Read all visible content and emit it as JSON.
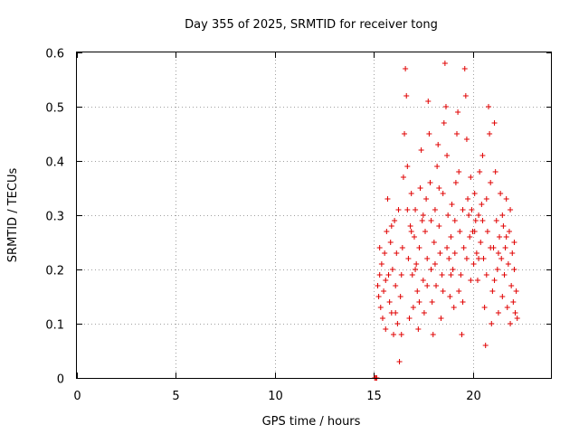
{
  "chart_data": {
    "type": "scatter",
    "title": "Day 355 of 2025, SRMTID for receiver tong",
    "xlabel": "GPS time / hours",
    "ylabel": "SRMTID / TECUs",
    "xlim": [
      0,
      24
    ],
    "ylim": [
      0,
      0.6
    ],
    "xticks": [
      "0",
      "5",
      "10",
      "15",
      "20"
    ],
    "yticks": [
      "0",
      "0.1",
      "0.2",
      "0.3",
      "0.4",
      "0.5",
      "0.6"
    ],
    "marker": "+",
    "color": "#e00000",
    "grid": true,
    "series": [
      {
        "name": "SRMTID",
        "points": [
          [
            15.05,
            0.0
          ],
          [
            15.1,
            0.0
          ],
          [
            15.15,
            0.0
          ],
          [
            15.2,
            0.17
          ],
          [
            15.25,
            0.15
          ],
          [
            15.3,
            0.19
          ],
          [
            15.35,
            0.13
          ],
          [
            15.4,
            0.21
          ],
          [
            15.45,
            0.11
          ],
          [
            15.5,
            0.16
          ],
          [
            15.55,
            0.23
          ],
          [
            15.6,
            0.09
          ],
          [
            15.65,
            0.27
          ],
          [
            15.7,
            0.33
          ],
          [
            15.75,
            0.19
          ],
          [
            15.8,
            0.14
          ],
          [
            15.85,
            0.25
          ],
          [
            15.9,
            0.12
          ],
          [
            15.95,
            0.2
          ],
          [
            16.0,
            0.08
          ],
          [
            16.05,
            0.29
          ],
          [
            16.1,
            0.17
          ],
          [
            16.15,
            0.23
          ],
          [
            16.2,
            0.1
          ],
          [
            16.25,
            0.31
          ],
          [
            16.3,
            0.03
          ],
          [
            16.35,
            0.15
          ],
          [
            16.4,
            0.08
          ],
          [
            16.45,
            0.24
          ],
          [
            16.5,
            0.37
          ],
          [
            16.55,
            0.45
          ],
          [
            16.6,
            0.57
          ],
          [
            16.65,
            0.52
          ],
          [
            16.7,
            0.39
          ],
          [
            16.75,
            0.22
          ],
          [
            16.8,
            0.11
          ],
          [
            16.85,
            0.28
          ],
          [
            16.9,
            0.34
          ],
          [
            16.95,
            0.19
          ],
          [
            17.0,
            0.13
          ],
          [
            17.05,
            0.26
          ],
          [
            17.1,
            0.31
          ],
          [
            17.15,
            0.21
          ],
          [
            17.2,
            0.16
          ],
          [
            17.25,
            0.09
          ],
          [
            17.3,
            0.24
          ],
          [
            17.35,
            0.35
          ],
          [
            17.4,
            0.42
          ],
          [
            17.45,
            0.29
          ],
          [
            17.5,
            0.18
          ],
          [
            17.55,
            0.12
          ],
          [
            17.6,
            0.27
          ],
          [
            17.65,
            0.33
          ],
          [
            17.7,
            0.22
          ],
          [
            17.75,
            0.51
          ],
          [
            17.8,
            0.45
          ],
          [
            17.85,
            0.36
          ],
          [
            17.9,
            0.2
          ],
          [
            17.95,
            0.14
          ],
          [
            18.0,
            0.08
          ],
          [
            18.05,
            0.25
          ],
          [
            18.1,
            0.31
          ],
          [
            18.15,
            0.17
          ],
          [
            18.2,
            0.39
          ],
          [
            18.25,
            0.43
          ],
          [
            18.3,
            0.28
          ],
          [
            18.35,
            0.23
          ],
          [
            18.4,
            0.11
          ],
          [
            18.45,
            0.19
          ],
          [
            18.5,
            0.34
          ],
          [
            18.55,
            0.47
          ],
          [
            18.6,
            0.58
          ],
          [
            18.65,
            0.5
          ],
          [
            18.7,
            0.41
          ],
          [
            18.75,
            0.3
          ],
          [
            18.8,
            0.22
          ],
          [
            18.85,
            0.15
          ],
          [
            18.9,
            0.26
          ],
          [
            18.95,
            0.32
          ],
          [
            19.0,
            0.2
          ],
          [
            19.05,
            0.13
          ],
          [
            19.1,
            0.29
          ],
          [
            19.15,
            0.36
          ],
          [
            19.2,
            0.45
          ],
          [
            19.25,
            0.49
          ],
          [
            19.3,
            0.38
          ],
          [
            19.35,
            0.27
          ],
          [
            19.4,
            0.19
          ],
          [
            19.45,
            0.08
          ],
          [
            19.5,
            0.14
          ],
          [
            19.55,
            0.24
          ],
          [
            19.6,
            0.57
          ],
          [
            19.65,
            0.52
          ],
          [
            19.7,
            0.44
          ],
          [
            19.75,
            0.33
          ],
          [
            19.8,
            0.3
          ],
          [
            19.85,
            0.26
          ],
          [
            19.9,
            0.37
          ],
          [
            19.95,
            0.31
          ],
          [
            20.0,
            0.27
          ],
          [
            20.05,
            0.21
          ],
          [
            20.1,
            0.34
          ],
          [
            20.15,
            0.29
          ],
          [
            20.2,
            0.23
          ],
          [
            20.25,
            0.18
          ],
          [
            20.3,
            0.3
          ],
          [
            20.35,
            0.38
          ],
          [
            20.4,
            0.25
          ],
          [
            20.45,
            0.32
          ],
          [
            20.5,
            0.41
          ],
          [
            20.55,
            0.22
          ],
          [
            20.6,
            0.13
          ],
          [
            20.65,
            0.06
          ],
          [
            20.7,
            0.19
          ],
          [
            20.75,
            0.27
          ],
          [
            20.8,
            0.5
          ],
          [
            20.85,
            0.45
          ],
          [
            20.9,
            0.36
          ],
          [
            20.95,
            0.1
          ],
          [
            21.0,
            0.16
          ],
          [
            21.05,
            0.24
          ],
          [
            21.1,
            0.47
          ],
          [
            21.15,
            0.38
          ],
          [
            21.2,
            0.29
          ],
          [
            21.25,
            0.2
          ],
          [
            21.3,
            0.12
          ],
          [
            21.35,
            0.26
          ],
          [
            21.4,
            0.34
          ],
          [
            21.45,
            0.22
          ],
          [
            21.5,
            0.15
          ],
          [
            21.55,
            0.28
          ],
          [
            21.6,
            0.19
          ],
          [
            21.65,
            0.24
          ],
          [
            21.7,
            0.33
          ],
          [
            21.75,
            0.13
          ],
          [
            21.8,
            0.21
          ],
          [
            21.85,
            0.27
          ],
          [
            21.9,
            0.1
          ],
          [
            21.95,
            0.17
          ],
          [
            22.0,
            0.23
          ],
          [
            22.05,
            0.14
          ],
          [
            22.1,
            0.2
          ],
          [
            22.15,
            0.12
          ],
          [
            22.2,
            0.16
          ],
          [
            22.25,
            0.11
          ],
          [
            15.3,
            0.24
          ],
          [
            15.6,
            0.18
          ],
          [
            15.9,
            0.28
          ],
          [
            16.1,
            0.12
          ],
          [
            16.4,
            0.19
          ],
          [
            16.7,
            0.31
          ],
          [
            16.9,
            0.27
          ],
          [
            17.1,
            0.2
          ],
          [
            17.3,
            0.14
          ],
          [
            17.5,
            0.3
          ],
          [
            17.7,
            0.17
          ],
          [
            17.9,
            0.29
          ],
          [
            18.1,
            0.21
          ],
          [
            18.3,
            0.35
          ],
          [
            18.5,
            0.16
          ],
          [
            18.7,
            0.24
          ],
          [
            18.9,
            0.19
          ],
          [
            19.1,
            0.23
          ],
          [
            19.3,
            0.16
          ],
          [
            19.5,
            0.31
          ],
          [
            19.7,
            0.22
          ],
          [
            19.9,
            0.18
          ],
          [
            20.1,
            0.27
          ],
          [
            20.3,
            0.22
          ],
          [
            20.5,
            0.29
          ],
          [
            20.7,
            0.33
          ],
          [
            20.9,
            0.24
          ],
          [
            21.1,
            0.18
          ],
          [
            21.3,
            0.23
          ],
          [
            21.5,
            0.3
          ],
          [
            21.7,
            0.26
          ],
          [
            21.9,
            0.31
          ],
          [
            22.1,
            0.25
          ]
        ]
      }
    ]
  }
}
